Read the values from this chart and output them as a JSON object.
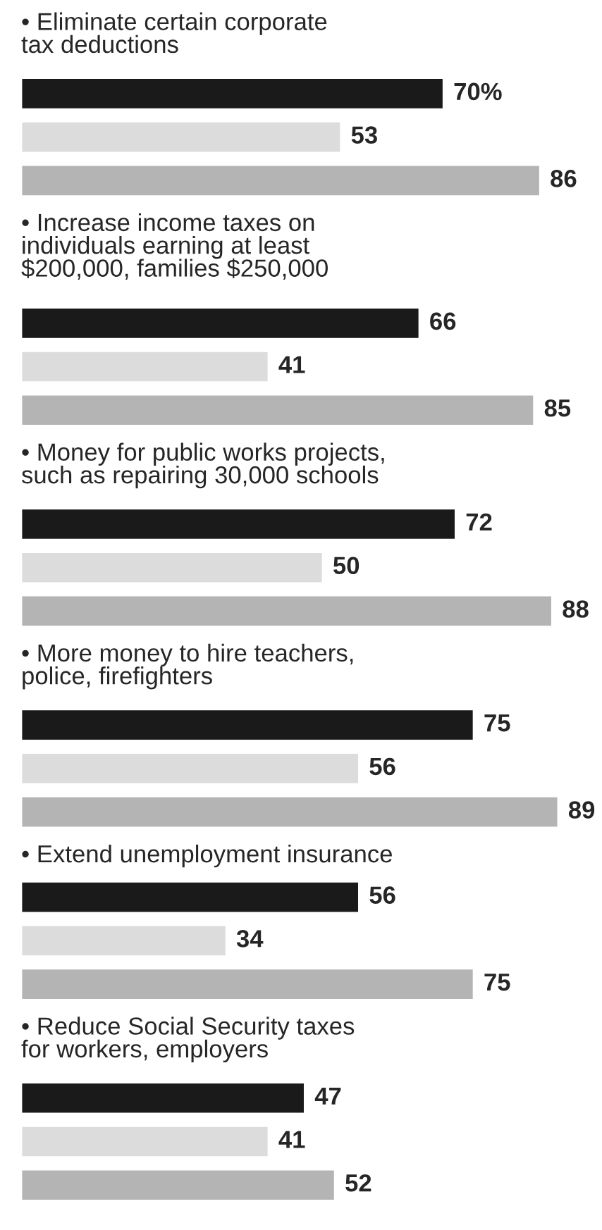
{
  "chart_data": {
    "type": "bar",
    "orientation": "horizontal",
    "categories": [
      "• Eliminate certain corporate\ntax deductions",
      "• Increase income taxes on\nindividuals earning at least\n$200,000, families $250,000",
      "• Money for public works projects,\nsuch as repairing 30,000 schools",
      "• More money to hire teachers,\npolice, firefighters",
      "• Extend unemployment insurance",
      "• Reduce Social Security taxes\nfor workers, employers"
    ],
    "series": [
      {
        "color": "#1a1a1a",
        "values": [
          70,
          66,
          72,
          75,
          56,
          47
        ],
        "value_labels": [
          "70%",
          "66",
          "72",
          "75",
          "56",
          "47"
        ]
      },
      {
        "color": "#dcdcdc",
        "values": [
          53,
          41,
          50,
          56,
          34,
          41
        ],
        "value_labels": [
          "53",
          "41",
          "50",
          "56",
          "34",
          "41"
        ]
      },
      {
        "color": "#b4b4b4",
        "values": [
          86,
          85,
          88,
          89,
          75,
          52
        ],
        "value_labels": [
          "86",
          "85",
          "88",
          "89",
          "75",
          "52"
        ]
      }
    ]
  }
}
